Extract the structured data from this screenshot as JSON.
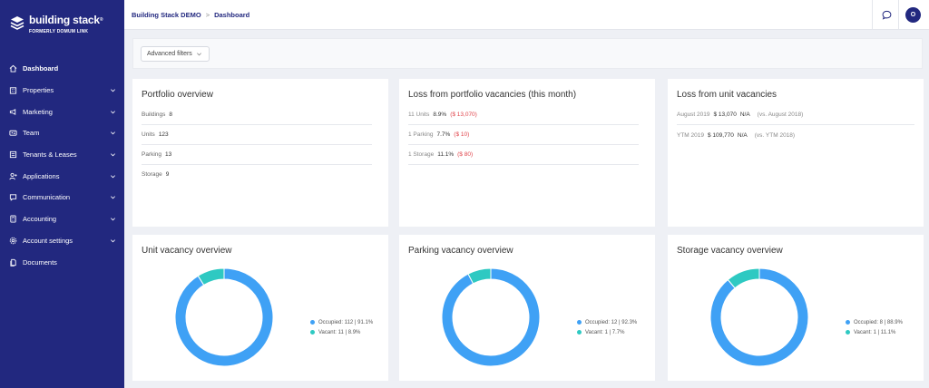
{
  "app": {
    "name": "building stack",
    "tm": "®",
    "tagline": "FORMERLY DOMUM LINK",
    "accent": "#22287f"
  },
  "sidebar": {
    "items": [
      {
        "label": "Dashboard",
        "icon": "home-icon",
        "expandable": false,
        "active": true
      },
      {
        "label": "Properties",
        "icon": "building-icon",
        "expandable": true
      },
      {
        "label": "Marketing",
        "icon": "megaphone-icon",
        "expandable": true
      },
      {
        "label": "Team",
        "icon": "team-icon",
        "expandable": true
      },
      {
        "label": "Tenants & Leases",
        "icon": "tenants-icon",
        "expandable": true
      },
      {
        "label": "Applications",
        "icon": "user-plus-icon",
        "expandable": true
      },
      {
        "label": "Communication",
        "icon": "chat-icon",
        "expandable": true
      },
      {
        "label": "Accounting",
        "icon": "calculator-icon",
        "expandable": true
      },
      {
        "label": "Account settings",
        "icon": "gear-icon",
        "expandable": true
      },
      {
        "label": "Documents",
        "icon": "documents-icon",
        "expandable": false
      }
    ]
  },
  "topbar": {
    "breadcrumb": [
      "Building Stack DEMO",
      "Dashboard"
    ],
    "separator": ">",
    "avatar_initial": "O"
  },
  "filters": {
    "button_label": "Advanced filters"
  },
  "portfolio": {
    "title": "Portfolio overview",
    "rows": [
      {
        "label": "Buildings",
        "value": "8"
      },
      {
        "label": "Units",
        "value": "123"
      },
      {
        "label": "Parking",
        "value": "13"
      },
      {
        "label": "Storage",
        "value": "9"
      }
    ]
  },
  "loss_portfolio": {
    "title": "Loss from portfolio vacancies (this month)",
    "rows": [
      {
        "label": "11 Units",
        "pct": "8.9%",
        "amount": "($ 13,070)"
      },
      {
        "label": "1 Parking",
        "pct": "7.7%",
        "amount": "($ 10)"
      },
      {
        "label": "1 Storage",
        "pct": "11.1%",
        "amount": "($ 80)"
      }
    ]
  },
  "loss_unit": {
    "title": "Loss from unit vacancies",
    "rows": [
      {
        "label": "August 2019",
        "amount": "$ 13,070",
        "change": "N/A",
        "compare": "(vs. August 2018)"
      },
      {
        "label": "YTM 2019",
        "amount": "$ 109,770",
        "change": "N/A",
        "compare": "(vs. YTM 2018)"
      }
    ]
  },
  "charts": [
    {
      "title": "Unit vacancy overview",
      "legend": [
        "Occupied: 112 | 91.1%",
        "Vacant: 11 | 8.9%"
      ],
      "values": [
        112,
        11
      ]
    },
    {
      "title": "Parking vacancy overview",
      "legend": [
        "Occupied: 12 | 92.3%",
        "Vacant: 1 | 7.7%"
      ],
      "values": [
        12,
        1
      ]
    },
    {
      "title": "Storage vacancy overview",
      "legend": [
        "Occupied: 8 | 88.9%",
        "Vacant: 1 | 11.1%"
      ],
      "values": [
        8,
        1
      ]
    }
  ],
  "chart_data": [
    {
      "type": "pie",
      "title": "Unit vacancy overview",
      "categories": [
        "Occupied",
        "Vacant"
      ],
      "values": [
        112,
        11
      ],
      "colors": [
        "#3fa1f5",
        "#2ec9c2"
      ]
    },
    {
      "type": "pie",
      "title": "Parking vacancy overview",
      "categories": [
        "Occupied",
        "Vacant"
      ],
      "values": [
        12,
        1
      ],
      "colors": [
        "#3fa1f5",
        "#2ec9c2"
      ]
    },
    {
      "type": "pie",
      "title": "Storage vacancy overview",
      "categories": [
        "Occupied",
        "Vacant"
      ],
      "values": [
        8,
        1
      ],
      "colors": [
        "#3fa1f5",
        "#2ec9c2"
      ]
    }
  ],
  "colors": {
    "occupied": "#3fa1f5",
    "vacant": "#2ec9c2",
    "negative": "#e0434a"
  }
}
